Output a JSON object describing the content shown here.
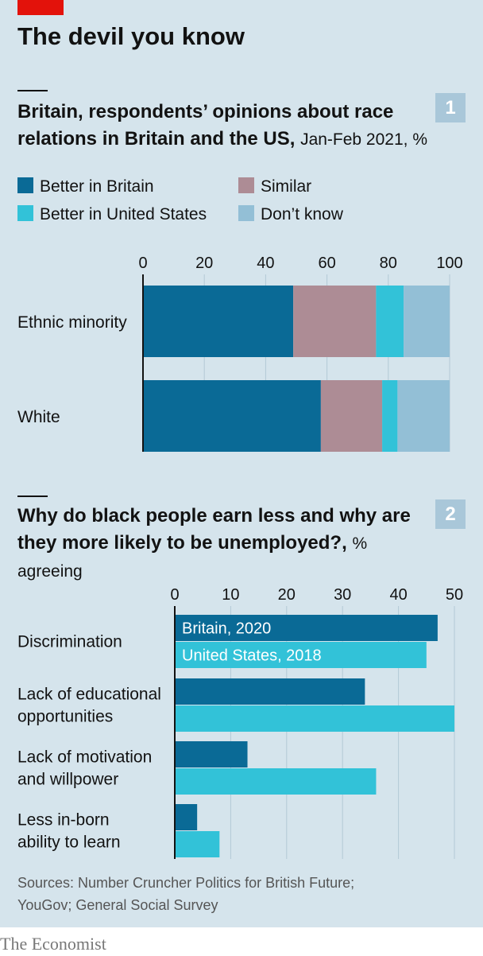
{
  "header": {
    "title": "The devil you know"
  },
  "chart1": {
    "number": "1",
    "title_bold_1": "Britain, respondents’ opinions about race",
    "title_bold_2": "relations in Britain and the US,",
    "title_light": "Jan-Feb 2021, %"
  },
  "chart2": {
    "number": "2",
    "title_bold_1": "Why do black people earn less and why are",
    "title_bold_2": "they more likely to be unemployed?,",
    "title_light": "% agreeing"
  },
  "footer": {
    "source_line_1": "Sources: Number Cruncher Politics for British Future;",
    "source_line_2": "YouGov; General Social Survey",
    "brand": "The Economist"
  },
  "colors": {
    "better_britain": "#0a6a96",
    "similar": "#ad8c95",
    "better_us": "#32c2d8",
    "dont_know": "#93bfd6",
    "britain_2020": "#0a6a96",
    "us_2018": "#32c2d8"
  },
  "chart_data": [
    {
      "type": "bar",
      "orientation": "horizontal",
      "stacked": true,
      "categories": [
        "Ethnic minority",
        "White"
      ],
      "series": [
        {
          "name": "Better in Britain",
          "values": [
            49,
            58
          ]
        },
        {
          "name": "Similar",
          "values": [
            27,
            20
          ]
        },
        {
          "name": "Better in United States",
          "values": [
            9,
            5
          ]
        },
        {
          "name": "Don’t know",
          "values": [
            15,
            17
          ]
        }
      ],
      "xlim": [
        0,
        100
      ],
      "xticks": [
        "0",
        "20",
        "40",
        "60",
        "80",
        "100"
      ],
      "legend_columns": [
        [
          "Better in Britain",
          "Better in United States"
        ],
        [
          "Similar",
          "Don’t know"
        ]
      ],
      "legend": "top",
      "grid": true
    },
    {
      "type": "bar",
      "orientation": "horizontal",
      "stacked": false,
      "categories": [
        [
          "Discrimination"
        ],
        [
          "Lack of educational",
          "opportunities"
        ],
        [
          "Lack of motivation",
          "and willpower"
        ],
        [
          "Less in-born",
          "ability to learn"
        ]
      ],
      "series": [
        {
          "name": "Britain, 2020",
          "values": [
            47,
            34,
            13,
            4
          ]
        },
        {
          "name": "United States, 2018",
          "values": [
            45,
            50,
            36,
            8
          ]
        }
      ],
      "xlim": [
        0,
        50
      ],
      "xticks": [
        "0",
        "10",
        "20",
        "30",
        "40",
        "50"
      ],
      "legend": "inside-bars",
      "grid": true
    }
  ]
}
